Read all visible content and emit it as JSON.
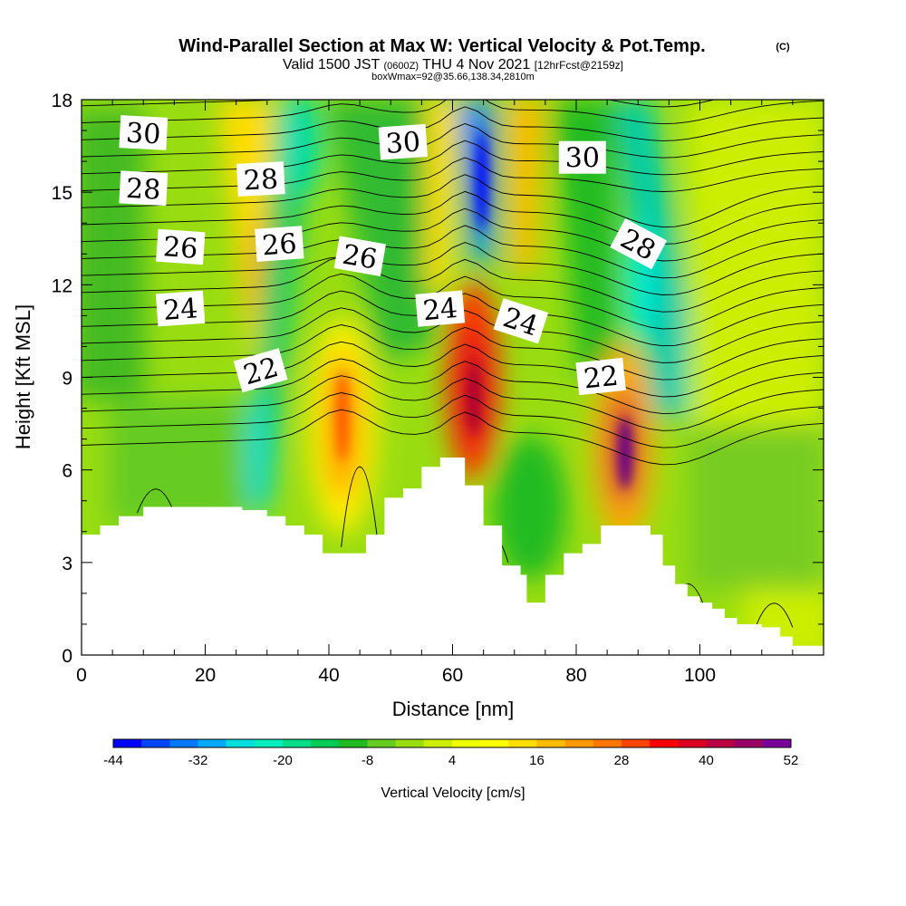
{
  "header": {
    "title": "Wind-Parallel Section at Max W: Vertical Velocity & Pot.Temp.",
    "title_mark": "(C)",
    "subtitle_a": "Valid 1500 JST",
    "subtitle_b": "(0600Z)",
    "subtitle_c": "THU 4 Nov 2021",
    "subtitle_d": "[12hrFcst@2159z]",
    "box_note": "boxWmax=92@35.66,138.34,2810m"
  },
  "chart_data": {
    "type": "heatmap",
    "xlabel": "Distance [nm]",
    "ylabel": "Height [Kft MSL]",
    "xlim": [
      0,
      120
    ],
    "ylim": [
      0,
      18
    ],
    "x_ticks": [
      0,
      20,
      40,
      60,
      80,
      100
    ],
    "y_ticks": [
      0,
      3,
      6,
      9,
      12,
      15,
      18
    ],
    "grid": false,
    "colorbar": {
      "label": "Vertical Velocity [cm/s]",
      "tick_labels": [
        "-44",
        "-32",
        "-20",
        "-8",
        "4",
        "16",
        "28",
        "40",
        "52"
      ],
      "colors": [
        "#0000ff",
        "#0044ff",
        "#0077ff",
        "#00aaff",
        "#00dddd",
        "#00eebb",
        "#00dd88",
        "#00cc55",
        "#22bb22",
        "#66cc22",
        "#99dd11",
        "#ccee00",
        "#eeff00",
        "#ffff00",
        "#ffdd00",
        "#ffbb00",
        "#ff9900",
        "#ff7700",
        "#ff4400",
        "#ff0000",
        "#dd0022",
        "#bb0044",
        "#990066",
        "#770099"
      ]
    },
    "theta_contour_labels": [
      {
        "text": "30",
        "x": 10,
        "y": 16.9
      },
      {
        "text": "30",
        "x": 52,
        "y": 16.6
      },
      {
        "text": "30",
        "x": 81,
        "y": 16.1
      },
      {
        "text": "28",
        "x": 10,
        "y": 15.1
      },
      {
        "text": "28",
        "x": 29,
        "y": 15.4
      },
      {
        "text": "28",
        "x": 90,
        "y": 13.3
      },
      {
        "text": "26",
        "x": 16,
        "y": 13.2
      },
      {
        "text": "26",
        "x": 32,
        "y": 13.3
      },
      {
        "text": "26",
        "x": 45,
        "y": 12.9
      },
      {
        "text": "24",
        "x": 16,
        "y": 11.2
      },
      {
        "text": "24",
        "x": 58,
        "y": 11.2
      },
      {
        "text": "24",
        "x": 71,
        "y": 10.8
      },
      {
        "text": "22",
        "x": 29,
        "y": 9.2
      },
      {
        "text": "22",
        "x": 84,
        "y": 9.0
      }
    ],
    "velocity_maxima": [
      {
        "x": 42,
        "y": 7.5,
        "value": 40
      },
      {
        "x": 64,
        "y": 8.5,
        "value": 44
      },
      {
        "x": 87,
        "y": 7.0,
        "value": 56
      }
    ],
    "velocity_minima": [
      {
        "x": 65,
        "y": 15.5,
        "value": -40
      },
      {
        "x": 30,
        "y": 6.5,
        "value": -20
      }
    ],
    "terrain_height_kft": [
      [
        0,
        3.9
      ],
      [
        3,
        4.2
      ],
      [
        6,
        4.5
      ],
      [
        10,
        4.8
      ],
      [
        16,
        4.8
      ],
      [
        22,
        4.8
      ],
      [
        26,
        4.7
      ],
      [
        30,
        4.5
      ],
      [
        33,
        4.2
      ],
      [
        36,
        3.9
      ],
      [
        39,
        3.3
      ],
      [
        43,
        3.3
      ],
      [
        46,
        3.9
      ],
      [
        49,
        5.1
      ],
      [
        52,
        5.4
      ],
      [
        55,
        6.1
      ],
      [
        58,
        6.4
      ],
      [
        62,
        5.5
      ],
      [
        65,
        4.2
      ],
      [
        68,
        2.9
      ],
      [
        71,
        2.6
      ],
      [
        72,
        1.7
      ],
      [
        75,
        2.6
      ],
      [
        78,
        3.3
      ],
      [
        81,
        3.6
      ],
      [
        84,
        4.2
      ],
      [
        88,
        4.2
      ],
      [
        92,
        3.9
      ],
      [
        94,
        2.9
      ],
      [
        96,
        2.3
      ],
      [
        98,
        1.9
      ],
      [
        100,
        1.7
      ],
      [
        102,
        1.5
      ],
      [
        104,
        1.2
      ],
      [
        106,
        1.0
      ],
      [
        110,
        0.9
      ],
      [
        113,
        0.6
      ],
      [
        115,
        0.3
      ],
      [
        120,
        0.3
      ]
    ]
  }
}
